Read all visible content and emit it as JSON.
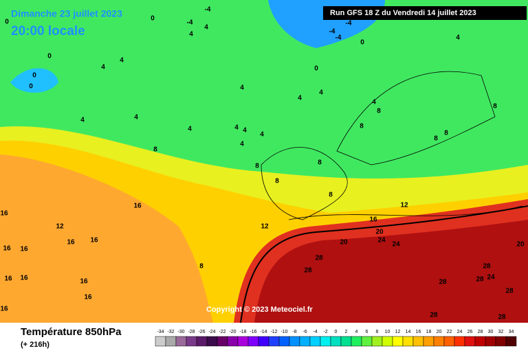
{
  "header": {
    "date": "Dimanche 23 juillet 2023",
    "time": "20:00 locale",
    "run": "Run GFS 18 Z du Vendredi 14 juillet 2023"
  },
  "copyright": "Copyright © 2023 Meteociel.fr",
  "footer": {
    "title": "Température 850hPa",
    "lead": "(+ 216h)"
  },
  "contour_labels": [
    "0",
    "0",
    "-4",
    "4",
    "4",
    "-4",
    "0",
    "0",
    "0",
    "4",
    "4",
    "-4",
    "-4",
    "-4",
    "0",
    "0",
    "4",
    "4",
    "4",
    "4",
    "4",
    "4",
    "4",
    "4",
    "4",
    "4",
    "4",
    "4",
    "8",
    "8",
    "8",
    "8",
    "8",
    "8",
    "8",
    "8",
    "8",
    "8",
    "12",
    "12",
    "12",
    "16",
    "16",
    "16",
    "16",
    "16",
    "16",
    "16",
    "16",
    "16",
    "16",
    "16",
    "16",
    "20",
    "20",
    "24",
    "24",
    "20",
    "8",
    "28",
    "28",
    "28",
    "28",
    "24",
    "28",
    "28",
    "28",
    "28"
  ],
  "legend": {
    "values": [
      -34,
      -32,
      -30,
      -28,
      -26,
      -24,
      -22,
      -20,
      -18,
      -16,
      -14,
      -12,
      -10,
      -8,
      -6,
      -4,
      -2,
      0,
      2,
      4,
      6,
      8,
      10,
      12,
      14,
      16,
      18,
      20,
      22,
      24,
      26,
      28,
      30,
      32,
      34
    ],
    "colors": [
      "#cccccc",
      "#aaaaaa",
      "#9a6a9a",
      "#7a3a8a",
      "#5a1a6a",
      "#3a0a4a",
      "#660066",
      "#8800aa",
      "#aa00dd",
      "#8000ff",
      "#4000ff",
      "#2040ff",
      "#0060ff",
      "#0090ff",
      "#00b0ff",
      "#00d0ff",
      "#00f0f0",
      "#00e0c0",
      "#00e090",
      "#20f060",
      "#60f040",
      "#a0f020",
      "#d0ff00",
      "#ffff00",
      "#ffe000",
      "#ffc000",
      "#ffa000",
      "#ff8000",
      "#ff6000",
      "#ff3000",
      "#e01010",
      "#c00000",
      "#a00000",
      "#800000",
      "#500000"
    ]
  }
}
